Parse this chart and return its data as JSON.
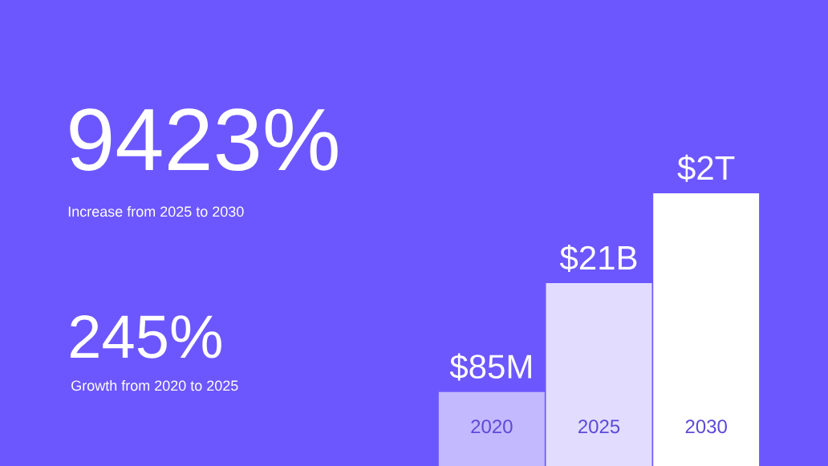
{
  "chart_data": {
    "type": "bar",
    "log": "y",
    "ylim": [
      2000000,
      2000000000000
    ],
    "tick_labels": false,
    "categories": [
      "2020",
      "2025",
      "2030"
    ],
    "values": [
      85000000,
      21000000000,
      2000000000000
    ],
    "colors": [
      "#c3b9ff",
      "#e2ddff",
      "#ffffff"
    ],
    "value_labels": [
      "$85M",
      "$21B",
      "$2T"
    ],
    "annotations": [
      "9423%",
      "Increase from 2025 to 2030",
      "245%",
      "Growth from 2020 to 2025"
    ]
  }
}
